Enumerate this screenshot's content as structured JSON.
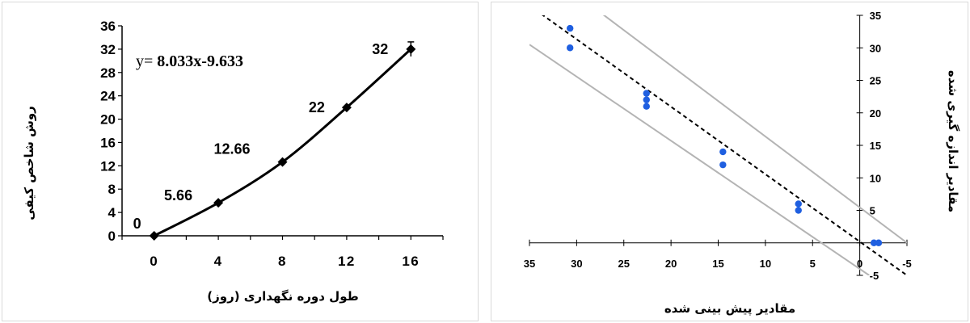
{
  "chart_data": [
    {
      "type": "line",
      "x": [
        0,
        4,
        8,
        12,
        16
      ],
      "values": [
        0,
        5.66,
        12.66,
        22,
        32
      ],
      "data_labels": [
        "0",
        "5.66",
        "12.66",
        "22",
        "32"
      ],
      "xlabel": "طول دوره نگهداری (روز)",
      "ylabel": "روش شاخص کیفی",
      "xlim": [
        -2,
        18
      ],
      "ylim": [
        0,
        36
      ],
      "x_ticks": [
        0,
        4,
        8,
        12,
        16
      ],
      "y_ticks": [
        0,
        4,
        8,
        12,
        16,
        20,
        24,
        28,
        32,
        36
      ],
      "equation_prefix": "y= ",
      "equation": "8.033x-9.633",
      "grid": false,
      "marker": "diamond",
      "color": "#000000"
    },
    {
      "type": "scatter",
      "points": [
        [
          30.7,
          33
        ],
        [
          30.7,
          30
        ],
        [
          22.6,
          23
        ],
        [
          22.6,
          22
        ],
        [
          22.6,
          21
        ],
        [
          14.5,
          14
        ],
        [
          14.5,
          12
        ],
        [
          6.5,
          6
        ],
        [
          6.5,
          5
        ],
        [
          -1.5,
          0
        ],
        [
          -2,
          0
        ]
      ],
      "fit_line": [
        [
          35,
          36.5
        ],
        [
          -5,
          -5
        ]
      ],
      "bound_upper": [
        [
          28,
          36
        ],
        [
          -5,
          0
        ]
      ],
      "bound_lower": [
        [
          35,
          30.5
        ],
        [
          -1,
          -5
        ]
      ],
      "xlabel": "مقادیر پیش بینی شده",
      "ylabel": "مقادیر اندازه گیری شده",
      "xlim": [
        35,
        -5
      ],
      "ylim": [
        -5,
        35
      ],
      "x_ticks": [
        35,
        30,
        25,
        20,
        15,
        10,
        5,
        0,
        -5
      ],
      "y_ticks": [
        35,
        30,
        25,
        20,
        15,
        10,
        5,
        -5
      ],
      "grid": false,
      "point_color": "#1f5fe0",
      "fit_line_color": "#000000",
      "bound_color": "#b4b4b4"
    }
  ]
}
